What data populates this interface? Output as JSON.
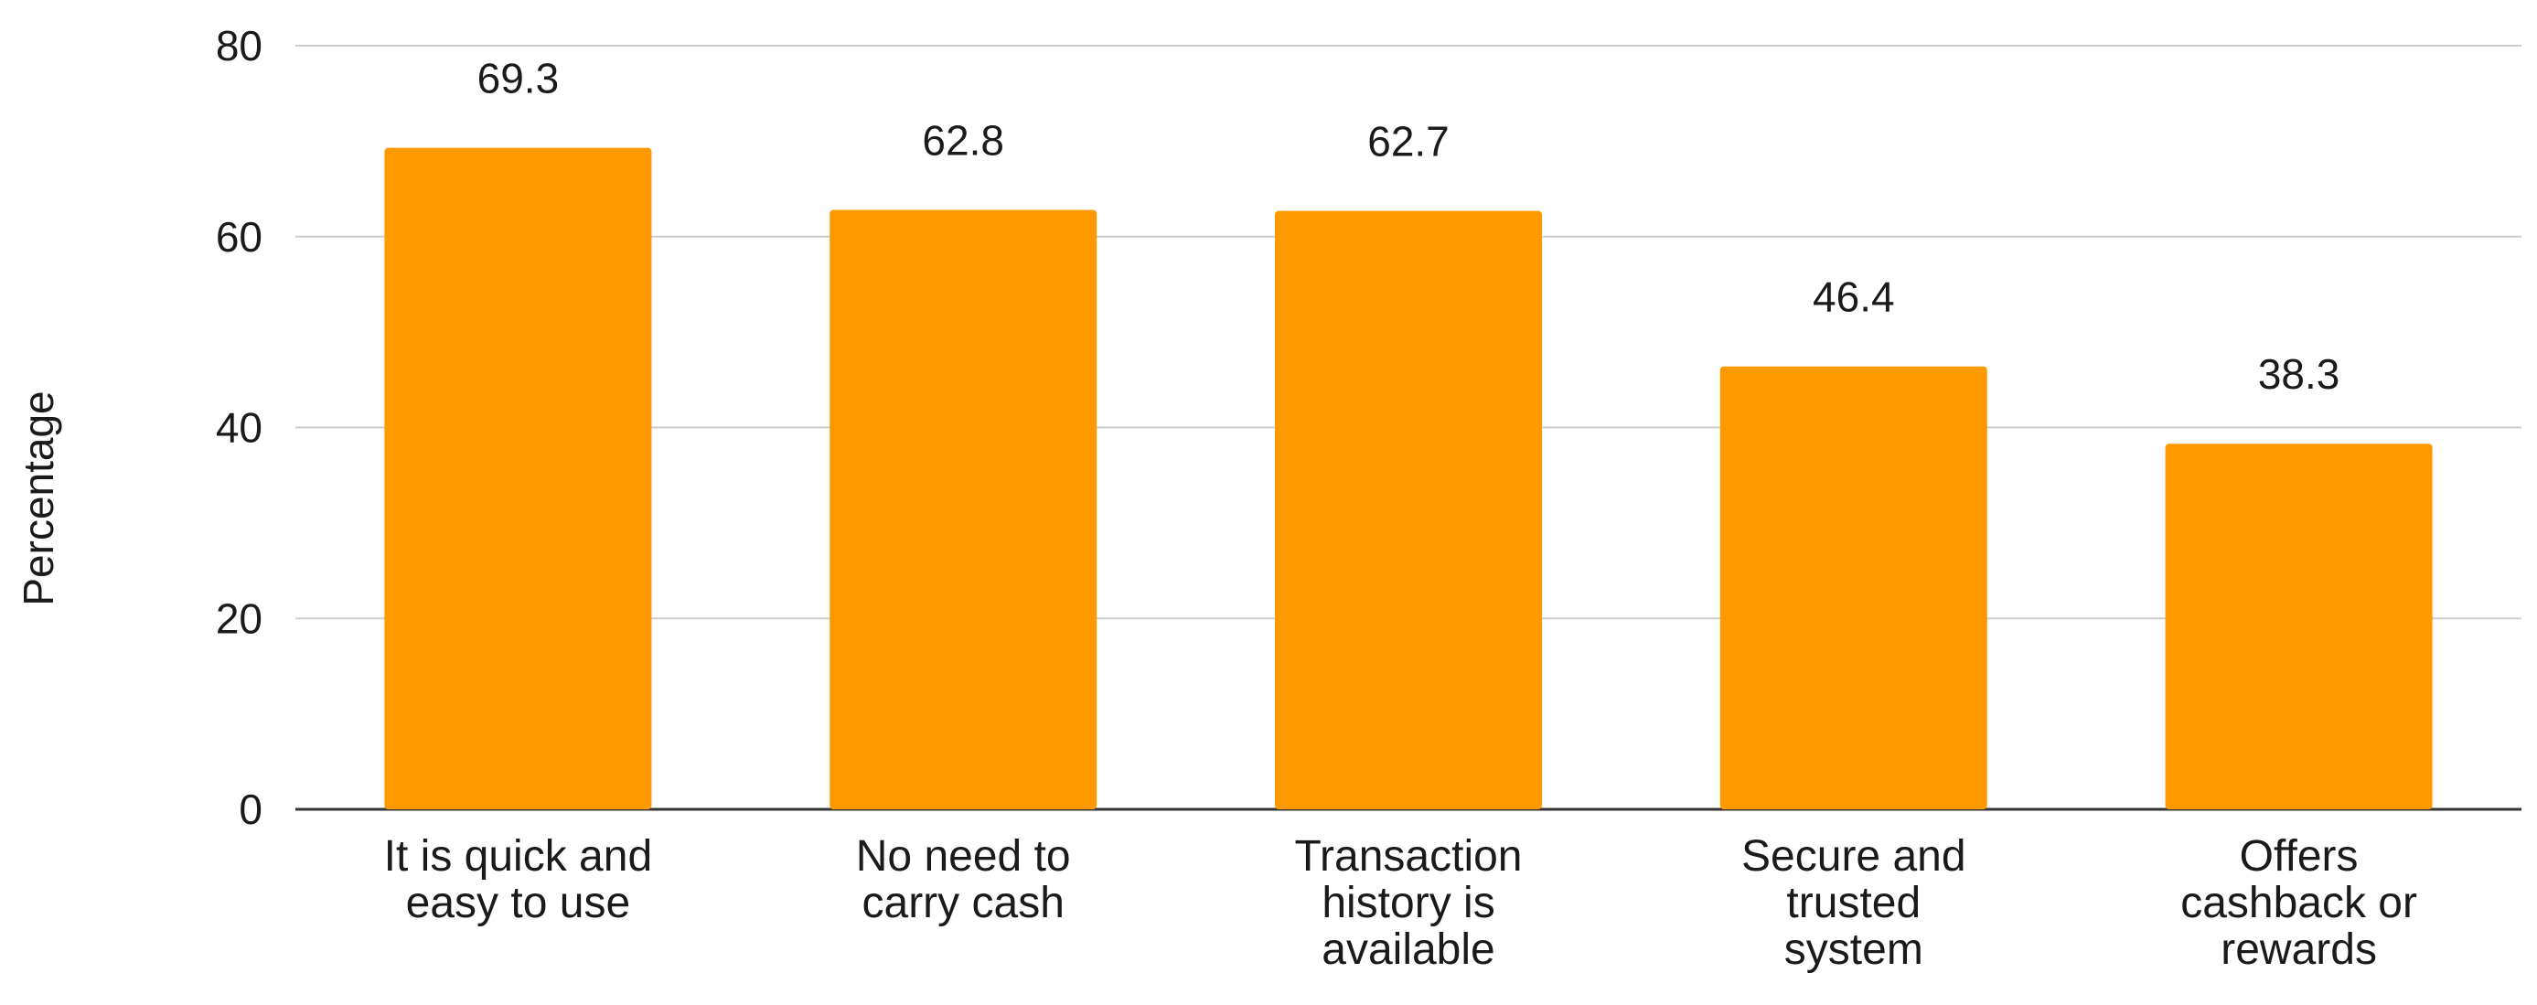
{
  "chart_data": {
    "type": "bar",
    "categories": [
      [
        "It is quick and",
        "easy to use"
      ],
      [
        "No need to",
        "carry cash"
      ],
      [
        "Transaction",
        "history is",
        "available"
      ],
      [
        "Secure and",
        "trusted",
        "system"
      ],
      [
        "Offers",
        "cashback or",
        "rewards"
      ]
    ],
    "values": [
      69.3,
      62.8,
      62.7,
      46.4,
      38.3
    ],
    "data_labels": [
      "69.3",
      "62.8",
      "62.7",
      "46.4",
      "38.3"
    ],
    "ylabel": "Percentage",
    "xlabel": "",
    "title": "",
    "ylim": [
      0,
      80
    ],
    "yticks": [
      "0",
      "20",
      "40",
      "60",
      "80"
    ],
    "grid": true,
    "legend": "none",
    "bar_color": "#ff9900",
    "grid_color": "#cccccc",
    "axis_color": "#333333"
  }
}
